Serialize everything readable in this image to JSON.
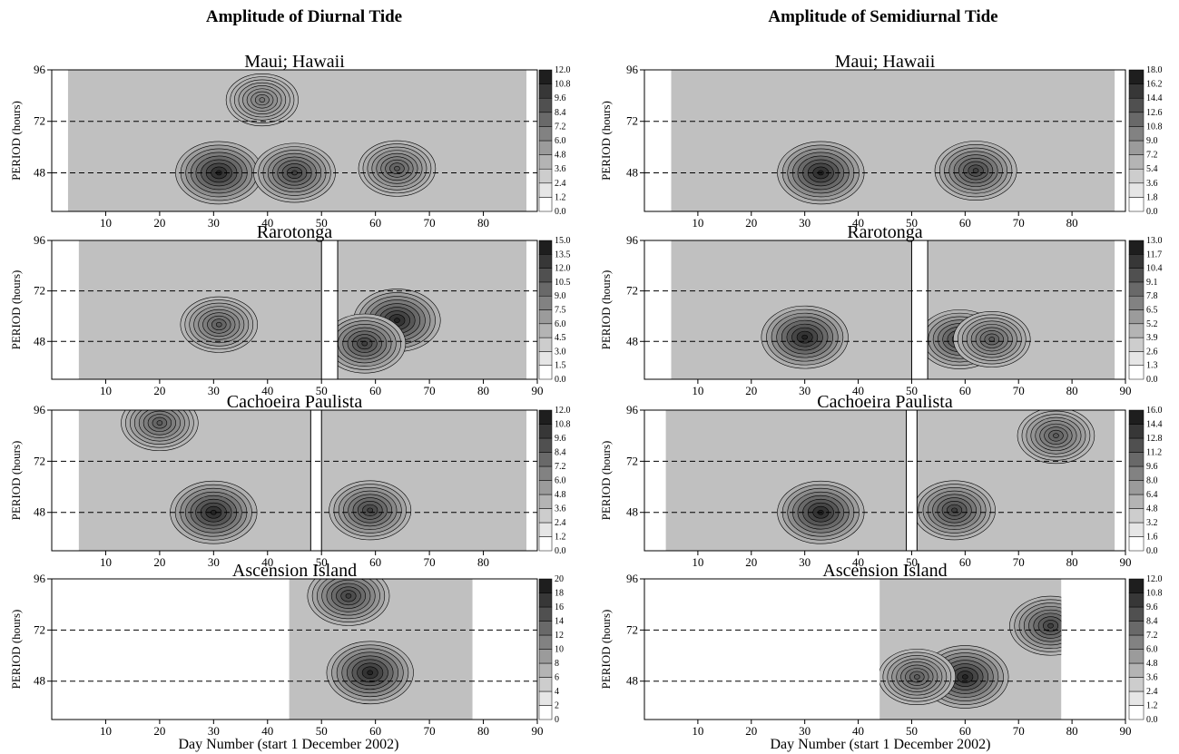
{
  "figure": {
    "column_titles": [
      "Amplitude of  Diurnal Tide",
      "Amplitude of  Semidiurnal Tide"
    ],
    "xlabel": "Day Number (start 1 December 2002)",
    "ylabel": "PERIOD (hours)"
  },
  "chart_data": [
    {
      "type": "heatmap",
      "column": 0,
      "title": "Maui; Hawaii",
      "ylabel": "PERIOD (hours)",
      "xlabel": "",
      "xticks": [
        10,
        20,
        30,
        40,
        50,
        60,
        70,
        80
      ],
      "ylim": [
        30,
        96
      ],
      "yticks": [
        48,
        72,
        96
      ],
      "reference_lines": [
        48,
        72
      ],
      "data_range": [
        3,
        88
      ],
      "colorbar": {
        "levels": [
          "0.0",
          "1.2",
          "2.4",
          "3.6",
          "4.8",
          "6.0",
          "7.2",
          "8.4",
          "9.6",
          "10.8",
          "12.0"
        ]
      },
      "maxima": [
        {
          "day": 31,
          "period": 48
        },
        {
          "day": 45,
          "period": 48
        },
        {
          "day": 64,
          "period": 50
        },
        {
          "day": 39,
          "period": 82
        }
      ]
    },
    {
      "type": "heatmap",
      "column": 1,
      "title": "Maui; Hawaii",
      "ylabel": "PERIOD (hours)",
      "xlabel": "",
      "xticks": [
        10,
        20,
        30,
        40,
        50,
        60,
        70,
        80
      ],
      "ylim": [
        30,
        96
      ],
      "yticks": [
        48,
        72,
        96
      ],
      "reference_lines": [
        48,
        72
      ],
      "data_range": [
        5,
        88
      ],
      "colorbar": {
        "levels": [
          "0.0",
          "1.8",
          "3.6",
          "5.4",
          "7.2",
          "9.0",
          "10.8",
          "12.6",
          "14.4",
          "16.2",
          "18.0"
        ]
      },
      "maxima": [
        {
          "day": 33,
          "period": 48
        },
        {
          "day": 62,
          "period": 49
        }
      ]
    },
    {
      "type": "heatmap",
      "column": 0,
      "title": "Rarotonga",
      "ylabel": "PERIOD (hours)",
      "xlabel": "",
      "xticks": [
        10,
        20,
        30,
        40,
        50,
        60,
        70,
        80,
        90
      ],
      "ylim": [
        30,
        96
      ],
      "yticks": [
        48,
        72,
        96
      ],
      "reference_lines": [
        48,
        72
      ],
      "data_range": [
        5,
        88
      ],
      "data_gap": [
        50,
        53
      ],
      "colorbar": {
        "levels": [
          "0.0",
          "1.5",
          "3.0",
          "4.5",
          "6.0",
          "7.5",
          "9.0",
          "10.5",
          "12.0",
          "13.5",
          "15.0"
        ]
      },
      "maxima": [
        {
          "day": 64,
          "period": 58
        },
        {
          "day": 58,
          "period": 47
        },
        {
          "day": 31,
          "period": 56
        }
      ]
    },
    {
      "type": "heatmap",
      "column": 1,
      "title": "Rarotonga",
      "ylabel": "PERIOD (hours)",
      "xlabel": "",
      "xticks": [
        10,
        20,
        30,
        40,
        50,
        60,
        70,
        80,
        90
      ],
      "ylim": [
        30,
        96
      ],
      "yticks": [
        48,
        72,
        96
      ],
      "reference_lines": [
        48,
        72
      ],
      "data_range": [
        5,
        88
      ],
      "data_gap": [
        50,
        53
      ],
      "colorbar": {
        "levels": [
          "0.0",
          "1.3",
          "2.6",
          "3.9",
          "5.2",
          "6.5",
          "7.8",
          "9.1",
          "10.4",
          "11.7",
          "13.0"
        ]
      },
      "maxima": [
        {
          "day": 30,
          "period": 50
        },
        {
          "day": 59,
          "period": 49
        },
        {
          "day": 65,
          "period": 49
        }
      ]
    },
    {
      "type": "heatmap",
      "column": 0,
      "title": "Cachoeira Paulista",
      "ylabel": "PERIOD (hours)",
      "xlabel": "",
      "xticks": [
        10,
        20,
        30,
        40,
        50,
        60,
        70,
        80
      ],
      "ylim": [
        30,
        96
      ],
      "yticks": [
        48,
        72,
        96
      ],
      "reference_lines": [
        48,
        72
      ],
      "data_range": [
        5,
        88
      ],
      "data_gap": [
        48,
        50
      ],
      "colorbar": {
        "levels": [
          "0.0",
          "1.2",
          "2.4",
          "3.6",
          "4.8",
          "6.0",
          "7.2",
          "8.4",
          "9.6",
          "10.8",
          "12.0"
        ]
      },
      "maxima": [
        {
          "day": 30,
          "period": 48
        },
        {
          "day": 59,
          "period": 49
        },
        {
          "day": 20,
          "period": 90
        }
      ]
    },
    {
      "type": "heatmap",
      "column": 1,
      "title": "Cachoeira Paulista",
      "ylabel": "PERIOD (hours)",
      "xlabel": "",
      "xticks": [
        10,
        20,
        30,
        40,
        50,
        60,
        70,
        80,
        90
      ],
      "ylim": [
        30,
        96
      ],
      "yticks": [
        48,
        72,
        96
      ],
      "reference_lines": [
        48,
        72
      ],
      "data_range": [
        4,
        88
      ],
      "data_gap": [
        49,
        51
      ],
      "colorbar": {
        "levels": [
          "0.0",
          "1.6",
          "3.2",
          "4.8",
          "6.4",
          "8.0",
          "9.6",
          "11.2",
          "12.8",
          "14.4",
          "16.0"
        ]
      },
      "maxima": [
        {
          "day": 33,
          "period": 48
        },
        {
          "day": 58,
          "period": 49
        },
        {
          "day": 77,
          "period": 84
        }
      ]
    },
    {
      "type": "heatmap",
      "column": 0,
      "title": "Ascension Island",
      "ylabel": "PERIOD (hours)",
      "xlabel": "Day Number (start 1 December 2002)",
      "xticks": [
        10,
        20,
        30,
        40,
        50,
        60,
        70,
        80,
        90
      ],
      "ylim": [
        30,
        96
      ],
      "yticks": [
        48,
        72,
        96
      ],
      "reference_lines": [
        48,
        72
      ],
      "data_range": [
        44,
        78
      ],
      "colorbar": {
        "levels": [
          "0",
          "2",
          "4",
          "6",
          "8",
          "10",
          "12",
          "14",
          "16",
          "18",
          "20"
        ]
      },
      "maxima": [
        {
          "day": 59,
          "period": 52
        },
        {
          "day": 55,
          "period": 88
        }
      ]
    },
    {
      "type": "heatmap",
      "column": 1,
      "title": "Ascension Island",
      "ylabel": "PERIOD (hours)",
      "xlabel": "Day Number (start 1 December 2002)",
      "xticks": [
        10,
        20,
        30,
        40,
        50,
        60,
        70,
        80,
        90
      ],
      "ylim": [
        30,
        96
      ],
      "yticks": [
        48,
        72,
        96
      ],
      "reference_lines": [
        48,
        72
      ],
      "data_range": [
        44,
        78
      ],
      "colorbar": {
        "levels": [
          "0.0",
          "1.2",
          "2.4",
          "3.6",
          "4.8",
          "6.0",
          "7.2",
          "8.4",
          "9.6",
          "10.8",
          "12.0"
        ]
      },
      "maxima": [
        {
          "day": 60,
          "period": 50
        },
        {
          "day": 76,
          "period": 74
        },
        {
          "day": 51,
          "period": 50
        }
      ]
    }
  ]
}
